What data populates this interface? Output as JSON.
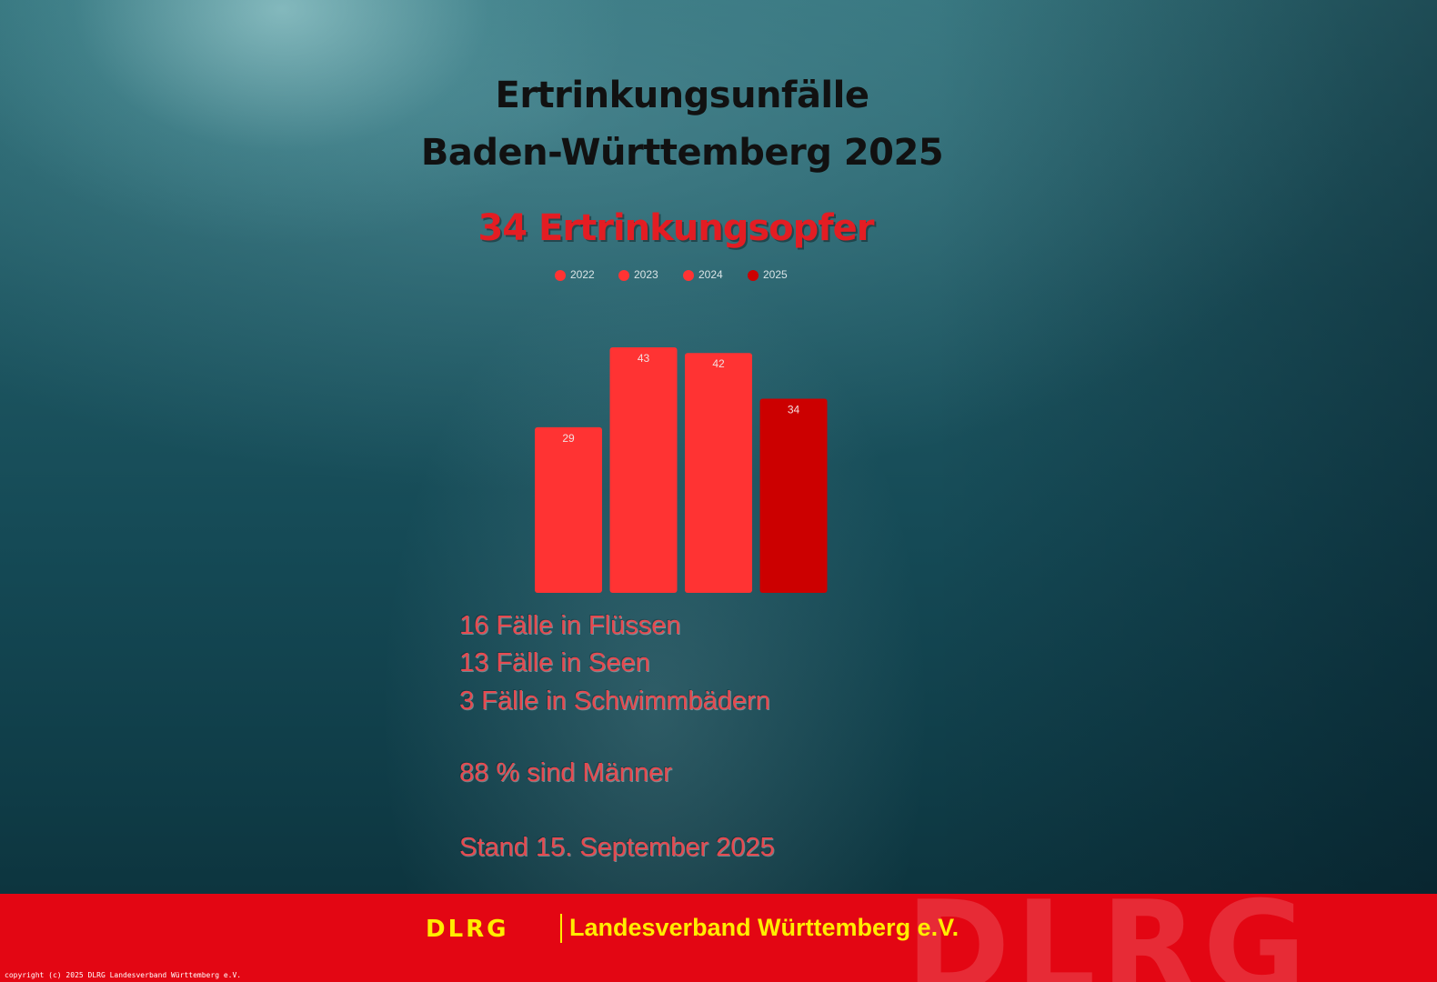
{
  "title_line1": "Ertrinkungsunfälle",
  "title_line2": "Baden-Württemberg 2025",
  "subtitle": "34 Ertrinkungsopfer",
  "chart_data": {
    "type": "bar",
    "categories": [
      "2022",
      "2023",
      "2024",
      "2025"
    ],
    "values": [
      29,
      43,
      42,
      34
    ],
    "colors": [
      "#ff3333",
      "#ff3333",
      "#ff3333",
      "#cc0000"
    ],
    "legend": [
      "2022",
      "2023",
      "2024",
      "2025"
    ],
    "legend_position": "top",
    "data_labels": true,
    "grid": false
  },
  "stats": {
    "rivers": "16 Fälle in Flüssen",
    "lakes": "13 Fälle in Seen",
    "pools": "3 Fälle in Schwimmbädern",
    "men": "88 % sind Männer",
    "date": "Stand 15. September 2025"
  },
  "footer": {
    "logo": "DLRG",
    "org": "Landesverband Württemberg e.V.",
    "watermark": "DLRG",
    "copyright": "copyright (c) 2025 DLRG Landesverband Württemberg e.V."
  },
  "colors": {
    "accent": "#e30613",
    "footer_text": "#ffed00",
    "bar_previous": "#ff3333",
    "bar_current": "#cc0000"
  }
}
